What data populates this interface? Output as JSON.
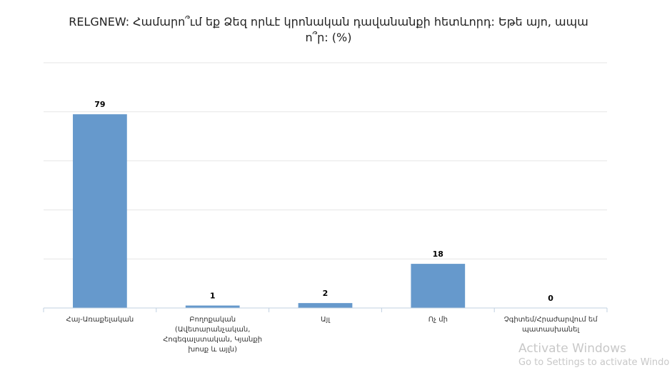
{
  "chart_data": {
    "type": "bar",
    "title": "RELGNEW: Համարո՞ւմ եք Ձեզ որևէ կրոնական դավանանքի հետևորդ: Եթե այո, ապա ո՞ր: (%)",
    "categories": [
      "Հայ-Առաքելական",
      "Բողոքական (Ավետարանչական, Հոգեգալստական, Կյանքի խոսք և այլն)",
      "Այլ",
      "Ոչ մի",
      "Չգիտեմ/Հրաժարվում եմ պատասխանել"
    ],
    "values": [
      79,
      1,
      2,
      18,
      0
    ],
    "ylim": [
      0,
      100
    ],
    "grid": true,
    "legend": "none",
    "bar_color": "#6699cc"
  },
  "watermark": {
    "title": "Activate Windows",
    "subtitle": "Go to Settings to activate Windo"
  }
}
